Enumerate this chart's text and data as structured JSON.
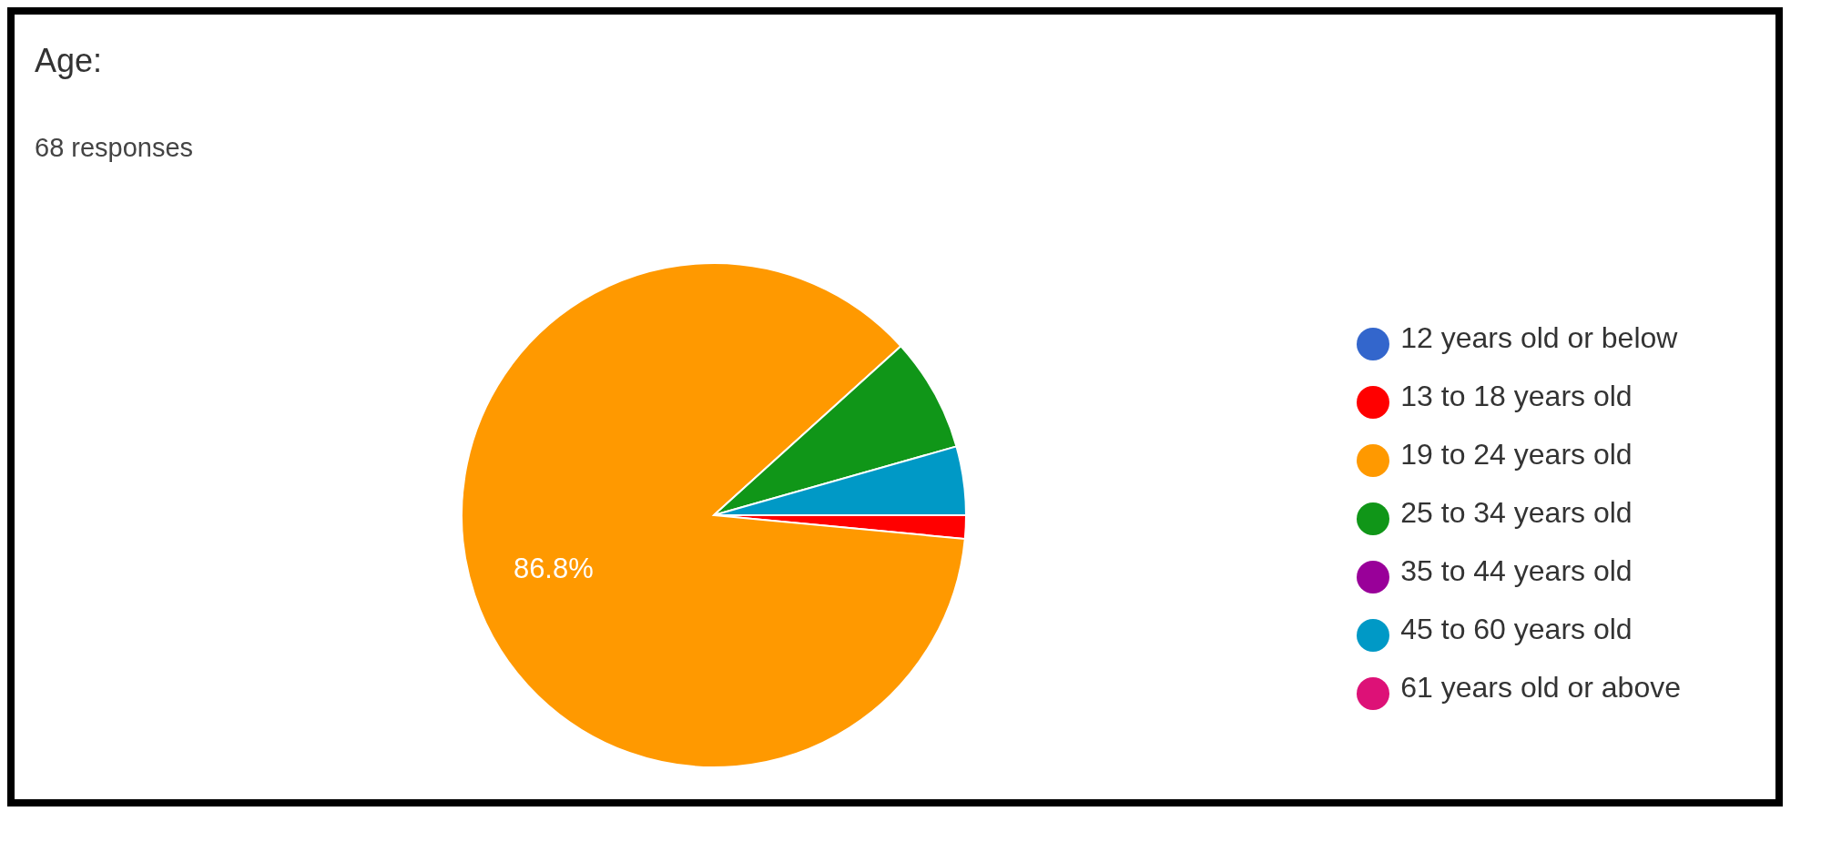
{
  "chart_data": {
    "type": "pie",
    "title": "Age:",
    "subtitle": "68 responses",
    "categories": [
      "12 years old or below",
      "13 to 18 years old",
      "19 to 24 years old",
      "25 to 34 years old",
      "35 to 44 years old",
      "45 to 60 years old",
      "61 years old or above"
    ],
    "values": [
      0,
      1.5,
      86.8,
      7.3,
      0,
      4.4,
      0
    ],
    "colors": [
      "#3366cc",
      "#ff0000",
      "#ff9900",
      "#109618",
      "#990099",
      "#0099c6",
      "#dd1177"
    ],
    "value_labels": [
      null,
      null,
      "86.8%",
      null,
      null,
      null,
      null
    ],
    "legend": "right"
  }
}
